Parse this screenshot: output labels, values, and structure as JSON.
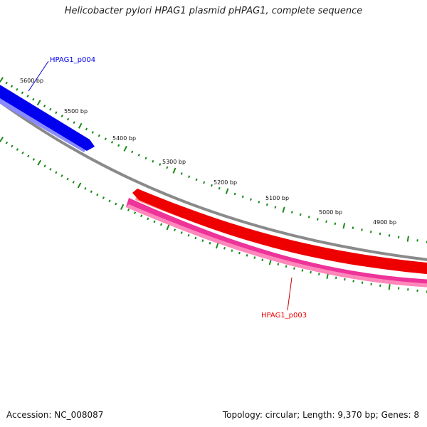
{
  "title": "Helicobacter pylori HPAG1 plasmid pHPAG1, complete sequence",
  "footer": {
    "accession": "Accession: NC_008087",
    "summary": "Topology: circular; Length: 9,370 bp; Genes: 8"
  },
  "scale": {
    "ticks": [
      "5600 bp",
      "5500 bp",
      "5400 bp",
      "5300 bp",
      "5200 bp",
      "5100 bp",
      "5000 bp",
      "4900 bp"
    ]
  },
  "genes": [
    {
      "label": "HPAG1_p004",
      "strand": "forward",
      "color": "#0000ee"
    },
    {
      "label": "HPAG1_p003",
      "strand": "reverse",
      "color": "#ee0000",
      "overlap_color": "#ee3399"
    }
  ],
  "colors": {
    "backbone": "#8a8a8a",
    "tick": "#1a8a1a",
    "forward_gene": "#0000ee",
    "reverse_gene": "#ee0000",
    "reverse_feature": "#ee3399"
  }
}
